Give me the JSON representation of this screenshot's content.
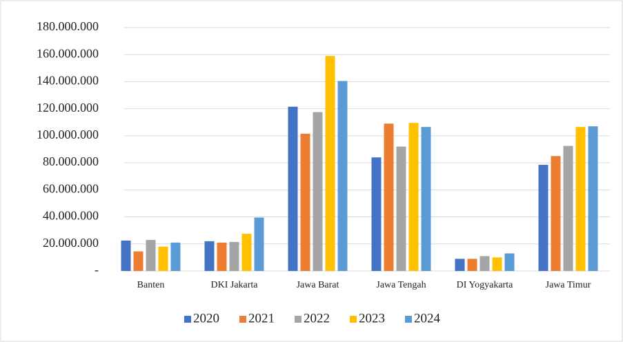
{
  "chart_data": {
    "type": "bar",
    "categories": [
      "Banten",
      "DKI Jakarta",
      "Jawa Barat",
      "Jawa Tengah",
      "DI Yogyakarta",
      "Jawa Timur"
    ],
    "series": [
      {
        "name": "2020",
        "color": "#4472c4",
        "values": [
          22500000,
          22000000,
          121500000,
          84000000,
          9000000,
          78500000
        ]
      },
      {
        "name": "2021",
        "color": "#ed7d31",
        "values": [
          14500000,
          21000000,
          101500000,
          109000000,
          9000000,
          85000000
        ]
      },
      {
        "name": "2022",
        "color": "#a5a5a5",
        "values": [
          23000000,
          21500000,
          117500000,
          92000000,
          11000000,
          92500000
        ]
      },
      {
        "name": "2023",
        "color": "#ffc000",
        "values": [
          18000000,
          27500000,
          159000000,
          109500000,
          10000000,
          106500000
        ]
      },
      {
        "name": "2024",
        "color": "#5b9bd5",
        "values": [
          21000000,
          39500000,
          140500000,
          106500000,
          13000000,
          107000000
        ]
      }
    ],
    "ylim": [
      0,
      180000000
    ],
    "yticks": [
      {
        "value": 0,
        "label": "-"
      },
      {
        "value": 20000000,
        "label": "20.000.000"
      },
      {
        "value": 40000000,
        "label": "40.000.000"
      },
      {
        "value": 60000000,
        "label": "60.000.000"
      },
      {
        "value": 80000000,
        "label": "80.000.000"
      },
      {
        "value": 100000000,
        "label": "100.000.000"
      },
      {
        "value": 120000000,
        "label": "120.000.000"
      },
      {
        "value": 140000000,
        "label": "140.000.000"
      },
      {
        "value": 160000000,
        "label": "160.000.000"
      },
      {
        "value": 180000000,
        "label": "180.000.000"
      }
    ],
    "grid": true,
    "legend": "bottom"
  }
}
